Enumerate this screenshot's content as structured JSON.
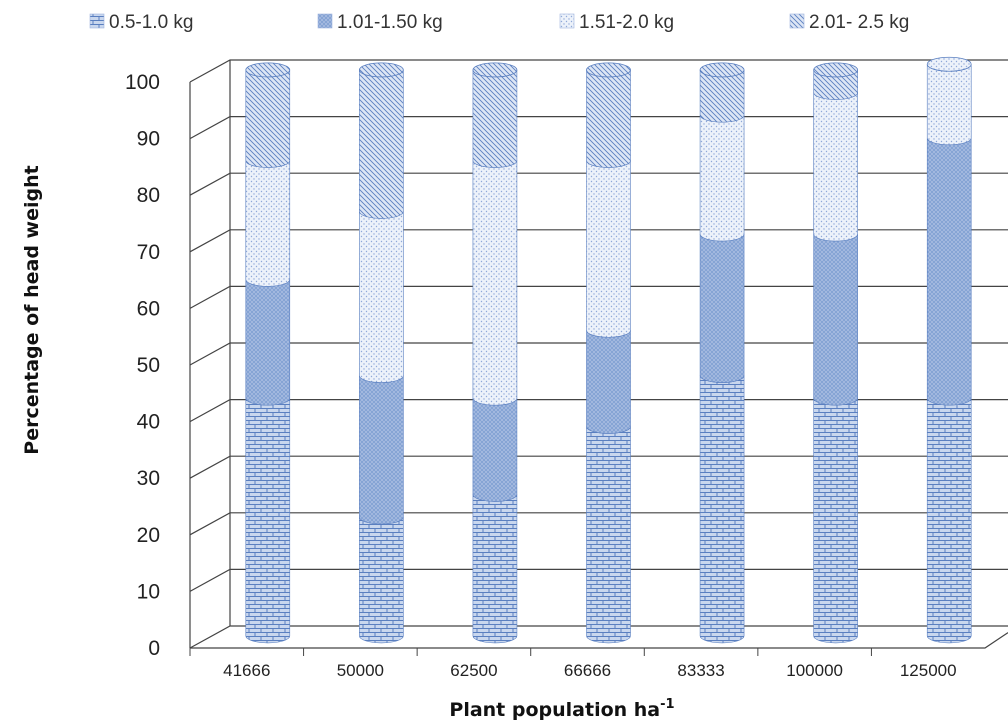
{
  "chart_data": {
    "type": "bar",
    "stacked": true,
    "style": "3d-cylinder",
    "title": "",
    "xlabel": "Plant population ha",
    "xlabel_superscript": "-1",
    "ylabel": "Percentage of head weight",
    "ylim": [
      0,
      100
    ],
    "yticks": [
      0,
      10,
      20,
      30,
      40,
      50,
      60,
      70,
      80,
      90,
      100
    ],
    "grid": true,
    "legend_position": "top",
    "categories": [
      "41666",
      "50000",
      "62500",
      "66666",
      "83333",
      "100000",
      "125000"
    ],
    "series": [
      {
        "name": "0.5-1.0 kg",
        "pattern": "brick",
        "values": [
          42,
          21,
          25,
          37,
          46,
          42,
          42
        ]
      },
      {
        "name": "1.01-1.50 kg",
        "pattern": "crosshatch",
        "values": [
          21,
          25,
          17,
          17,
          25,
          29,
          46
        ]
      },
      {
        "name": "1.51-2.0 kg",
        "pattern": "dots",
        "values": [
          21,
          29,
          42,
          30,
          21,
          25,
          13
        ]
      },
      {
        "name": "2.01- 2.5 kg",
        "pattern": "diagonal",
        "values": [
          16,
          25,
          16,
          16,
          8,
          4,
          0
        ]
      }
    ],
    "colors": {
      "fill": "#c9d7ee",
      "stroke": "#5a7fc0",
      "grid": "#444444",
      "dense": "#a9bde2"
    }
  }
}
